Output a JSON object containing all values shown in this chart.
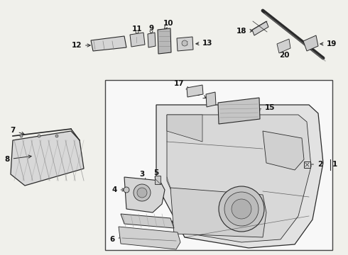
{
  "bg_color": "#f0f0eb",
  "line_color": "#2a2a2a",
  "box_color": "#f8f8f8",
  "box_border": "#444444",
  "label_color": "#111111",
  "fig_width": 4.9,
  "fig_height": 3.6,
  "dpi": 100
}
